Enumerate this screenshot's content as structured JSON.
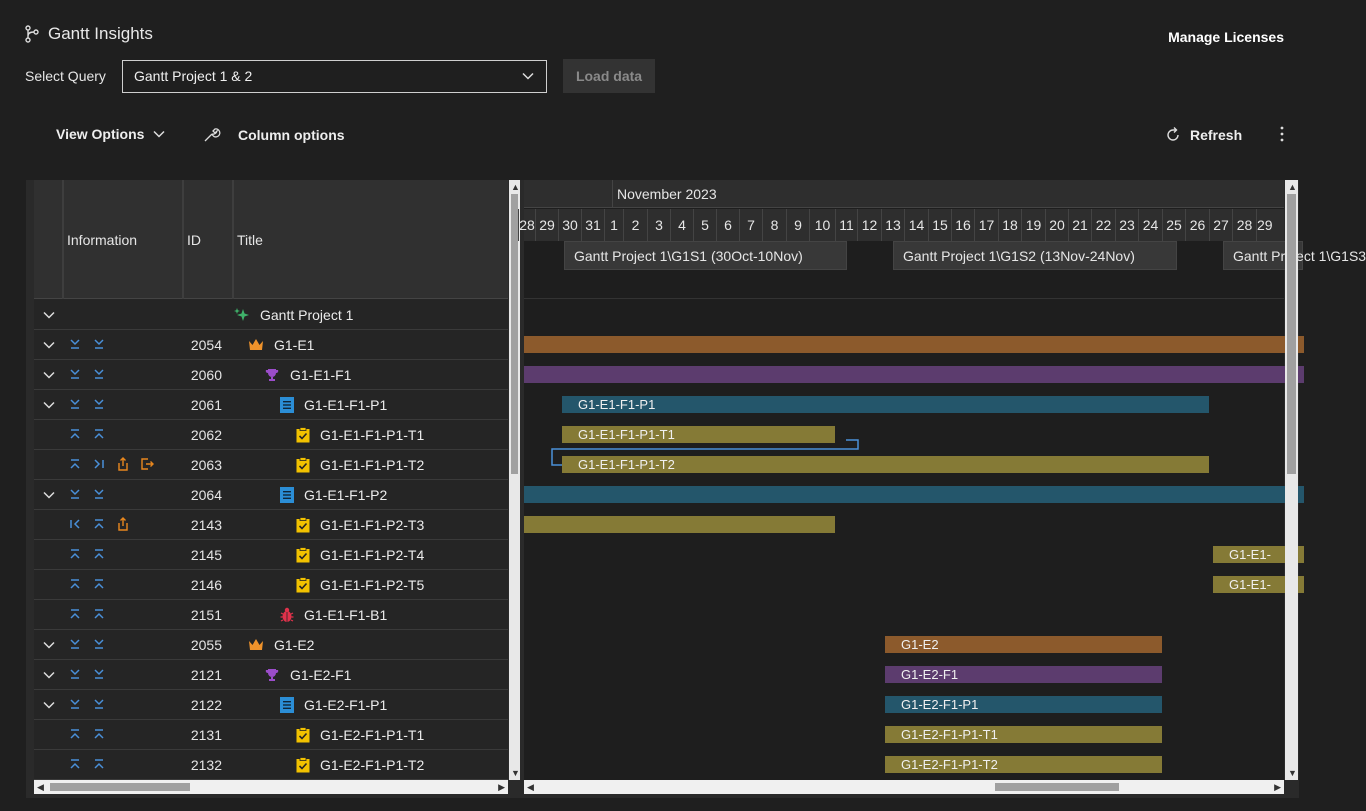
{
  "app": {
    "title": "Gantt Insights",
    "manage_licenses": "Manage Licenses"
  },
  "query": {
    "label": "Select Query",
    "selected": "Gantt Project 1 & 2",
    "load_button": "Load data"
  },
  "toolbar": {
    "view_options": "View Options",
    "column_options": "Column options",
    "refresh": "Refresh"
  },
  "columns": {
    "information": "Information",
    "id": "ID",
    "title": "Title"
  },
  "timeline": {
    "month": "November 2023",
    "days": [
      "28",
      "29",
      "30",
      "31",
      "1",
      "2",
      "3",
      "4",
      "5",
      "6",
      "7",
      "8",
      "9",
      "10",
      "11",
      "12",
      "13",
      "14",
      "15",
      "16",
      "17",
      "18",
      "19",
      "20",
      "21",
      "22",
      "23",
      "24",
      "25",
      "26",
      "27",
      "28",
      "29"
    ],
    "sprints": [
      {
        "label": "Gantt Project 1\\G1S1 (30Oct-10Nov)"
      },
      {
        "label": "Gantt Project 1\\G1S2 (13Nov-24Nov)"
      },
      {
        "label": "Gantt Project 1\\G1S3"
      }
    ]
  },
  "rows": [
    {
      "id": "",
      "title": "Gantt Project 1",
      "type": "project",
      "level": 0,
      "expand": true,
      "actions": []
    },
    {
      "id": "2054",
      "title": "G1-E1",
      "type": "epic",
      "level": 1,
      "expand": true,
      "actions": [
        "down",
        "down"
      ]
    },
    {
      "id": "2060",
      "title": "G1-E1-F1",
      "type": "feature",
      "level": 2,
      "expand": true,
      "actions": [
        "down",
        "down"
      ]
    },
    {
      "id": "2061",
      "title": "G1-E1-F1-P1",
      "type": "pbi",
      "level": 3,
      "expand": true,
      "actions": [
        "down",
        "down"
      ]
    },
    {
      "id": "2062",
      "title": "G1-E1-F1-P1-T1",
      "type": "task",
      "level": 4,
      "expand": false,
      "actions": [
        "up",
        "up"
      ]
    },
    {
      "id": "2063",
      "title": "G1-E1-F1-P1-T2",
      "type": "task",
      "level": 4,
      "expand": false,
      "actions": [
        "up",
        "right",
        "share",
        "exit"
      ]
    },
    {
      "id": "2064",
      "title": "G1-E1-F1-P2",
      "type": "pbi",
      "level": 3,
      "expand": true,
      "actions": [
        "down",
        "down"
      ]
    },
    {
      "id": "2143",
      "title": "G1-E1-F1-P2-T3",
      "type": "task",
      "level": 4,
      "expand": false,
      "actions": [
        "left",
        "up",
        "share"
      ]
    },
    {
      "id": "2145",
      "title": "G1-E1-F1-P2-T4",
      "type": "task",
      "level": 4,
      "expand": false,
      "actions": [
        "up",
        "up"
      ]
    },
    {
      "id": "2146",
      "title": "G1-E1-F1-P2-T5",
      "type": "task",
      "level": 4,
      "expand": false,
      "actions": [
        "up",
        "up"
      ]
    },
    {
      "id": "2151",
      "title": "G1-E1-F1-B1",
      "type": "bug",
      "level": 3,
      "expand": false,
      "actions": [
        "up",
        "up"
      ]
    },
    {
      "id": "2055",
      "title": "G1-E2",
      "type": "epic",
      "level": 1,
      "expand": true,
      "actions": [
        "down",
        "down"
      ]
    },
    {
      "id": "2121",
      "title": "G1-E2-F1",
      "type": "feature",
      "level": 2,
      "expand": true,
      "actions": [
        "down",
        "down"
      ]
    },
    {
      "id": "2122",
      "title": "G1-E2-F1-P1",
      "type": "pbi",
      "level": 3,
      "expand": true,
      "actions": [
        "down",
        "down"
      ]
    },
    {
      "id": "2131",
      "title": "G1-E2-F1-P1-T1",
      "type": "task",
      "level": 4,
      "expand": false,
      "actions": [
        "up",
        "up"
      ]
    },
    {
      "id": "2132",
      "title": "G1-E2-F1-P1-T2",
      "type": "task",
      "level": 4,
      "expand": false,
      "actions": [
        "up",
        "up"
      ]
    }
  ],
  "bars": [
    {
      "row": 1,
      "type": "epic",
      "label": "",
      "start_day": "28",
      "end_day": "29+"
    },
    {
      "row": 2,
      "type": "feat",
      "label": "",
      "start_day": "28",
      "end_day": "29+"
    },
    {
      "row": 3,
      "type": "pbi",
      "label": "G1-E1-F1-P1",
      "start_day": "30",
      "end_day": "26"
    },
    {
      "row": 4,
      "type": "task",
      "label": "G1-E1-F1-P1-T1",
      "start_day": "30",
      "end_day": "10"
    },
    {
      "row": 5,
      "type": "task",
      "label": "G1-E1-F1-P1-T2",
      "start_day": "30",
      "end_day": "26"
    },
    {
      "row": 6,
      "type": "pbi",
      "label": "",
      "start_day": "28",
      "end_day": "29+"
    },
    {
      "row": 7,
      "type": "task",
      "label": "",
      "start_day": "28",
      "end_day": "10"
    },
    {
      "row": 8,
      "type": "task",
      "label": "G1-E1-",
      "start_day": "27",
      "end_day": "29+"
    },
    {
      "row": 9,
      "type": "task",
      "label": "G1-E1-",
      "start_day": "27",
      "end_day": "29+"
    },
    {
      "row": 11,
      "type": "epic",
      "label": "G1-E2",
      "start_day": "13",
      "end_day": "24"
    },
    {
      "row": 12,
      "type": "feat",
      "label": "G1-E2-F1",
      "start_day": "13",
      "end_day": "24"
    },
    {
      "row": 13,
      "type": "pbi",
      "label": "G1-E2-F1-P1",
      "start_day": "13",
      "end_day": "24"
    },
    {
      "row": 14,
      "type": "task",
      "label": "G1-E2-F1-P1-T1",
      "start_day": "13",
      "end_day": "24"
    },
    {
      "row": 15,
      "type": "task",
      "label": "G1-E2-F1-P1-T2",
      "start_day": "13",
      "end_day": "24"
    }
  ],
  "colors": {
    "epic": "#8c5a2c",
    "feature": "#5c3c6e",
    "pbi": "#24566b",
    "task": "#857a36",
    "accent_action": "#4a90d9"
  }
}
